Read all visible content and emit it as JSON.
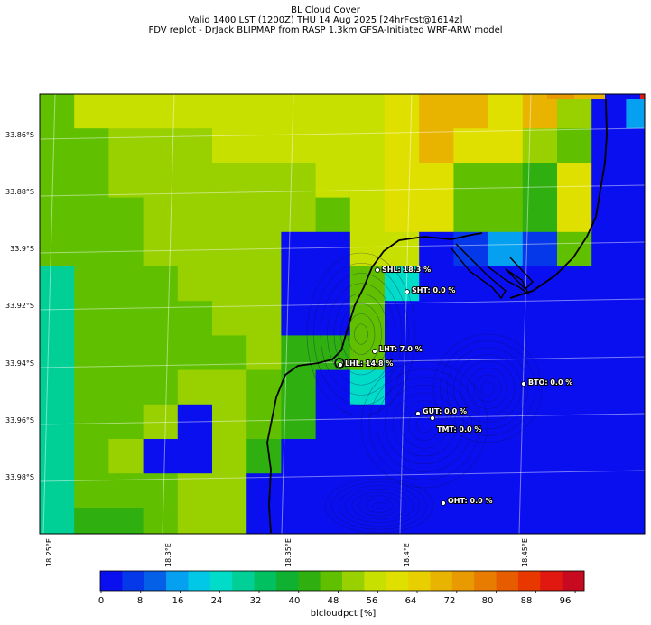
{
  "title": {
    "line1": "BL Cloud Cover",
    "line2": "Valid 1400 LST (1200Z) THU 14 Aug 2025 [24hrFcst@1614z]",
    "line3": "FDV replot - DrJack BLIPMAP from RASP 1.3km GFSA-Initiated WRF-ARW model"
  },
  "map": {
    "lat_ticks": [
      "33.86°S",
      "33.88°S",
      "33.9°S",
      "33.92°S",
      "33.94°S",
      "33.96°S",
      "33.98°S"
    ],
    "lon_ticks": [
      "18.25°E",
      "18.3°E",
      "18.35°E",
      "18.4°E",
      "18.45°E"
    ],
    "stations": [
      {
        "name": "SHL: 18.3 %"
      },
      {
        "name": "SHT: 0.0 %"
      },
      {
        "name": "LHT: 7.0 %"
      },
      {
        "name": "LHL: 14.8 %"
      },
      {
        "name": "BTO: 0.0 %"
      },
      {
        "name": "GUT: 0.0 %"
      },
      {
        "name": "TMT: 0.0 %"
      },
      {
        "name": "OHT: 0.0 %"
      }
    ]
  },
  "colorbar": {
    "label": "blcloudpct [%]",
    "ticks": [
      "0",
      "8",
      "16",
      "24",
      "32",
      "40",
      "48",
      "56",
      "64",
      "72",
      "80",
      "88",
      "96"
    ],
    "colors": [
      "#0a0ff0",
      "#0538e8",
      "#0560e8",
      "#05a0f0",
      "#00c8e6",
      "#00dcc8",
      "#00d096",
      "#00c060",
      "#10b030",
      "#30b010",
      "#60c000",
      "#98d000",
      "#c8e000",
      "#e0e000",
      "#e8d000",
      "#e8b400",
      "#e89a00",
      "#e87c00",
      "#e85c00",
      "#e83800",
      "#e01810",
      "#c80a20"
    ]
  }
}
